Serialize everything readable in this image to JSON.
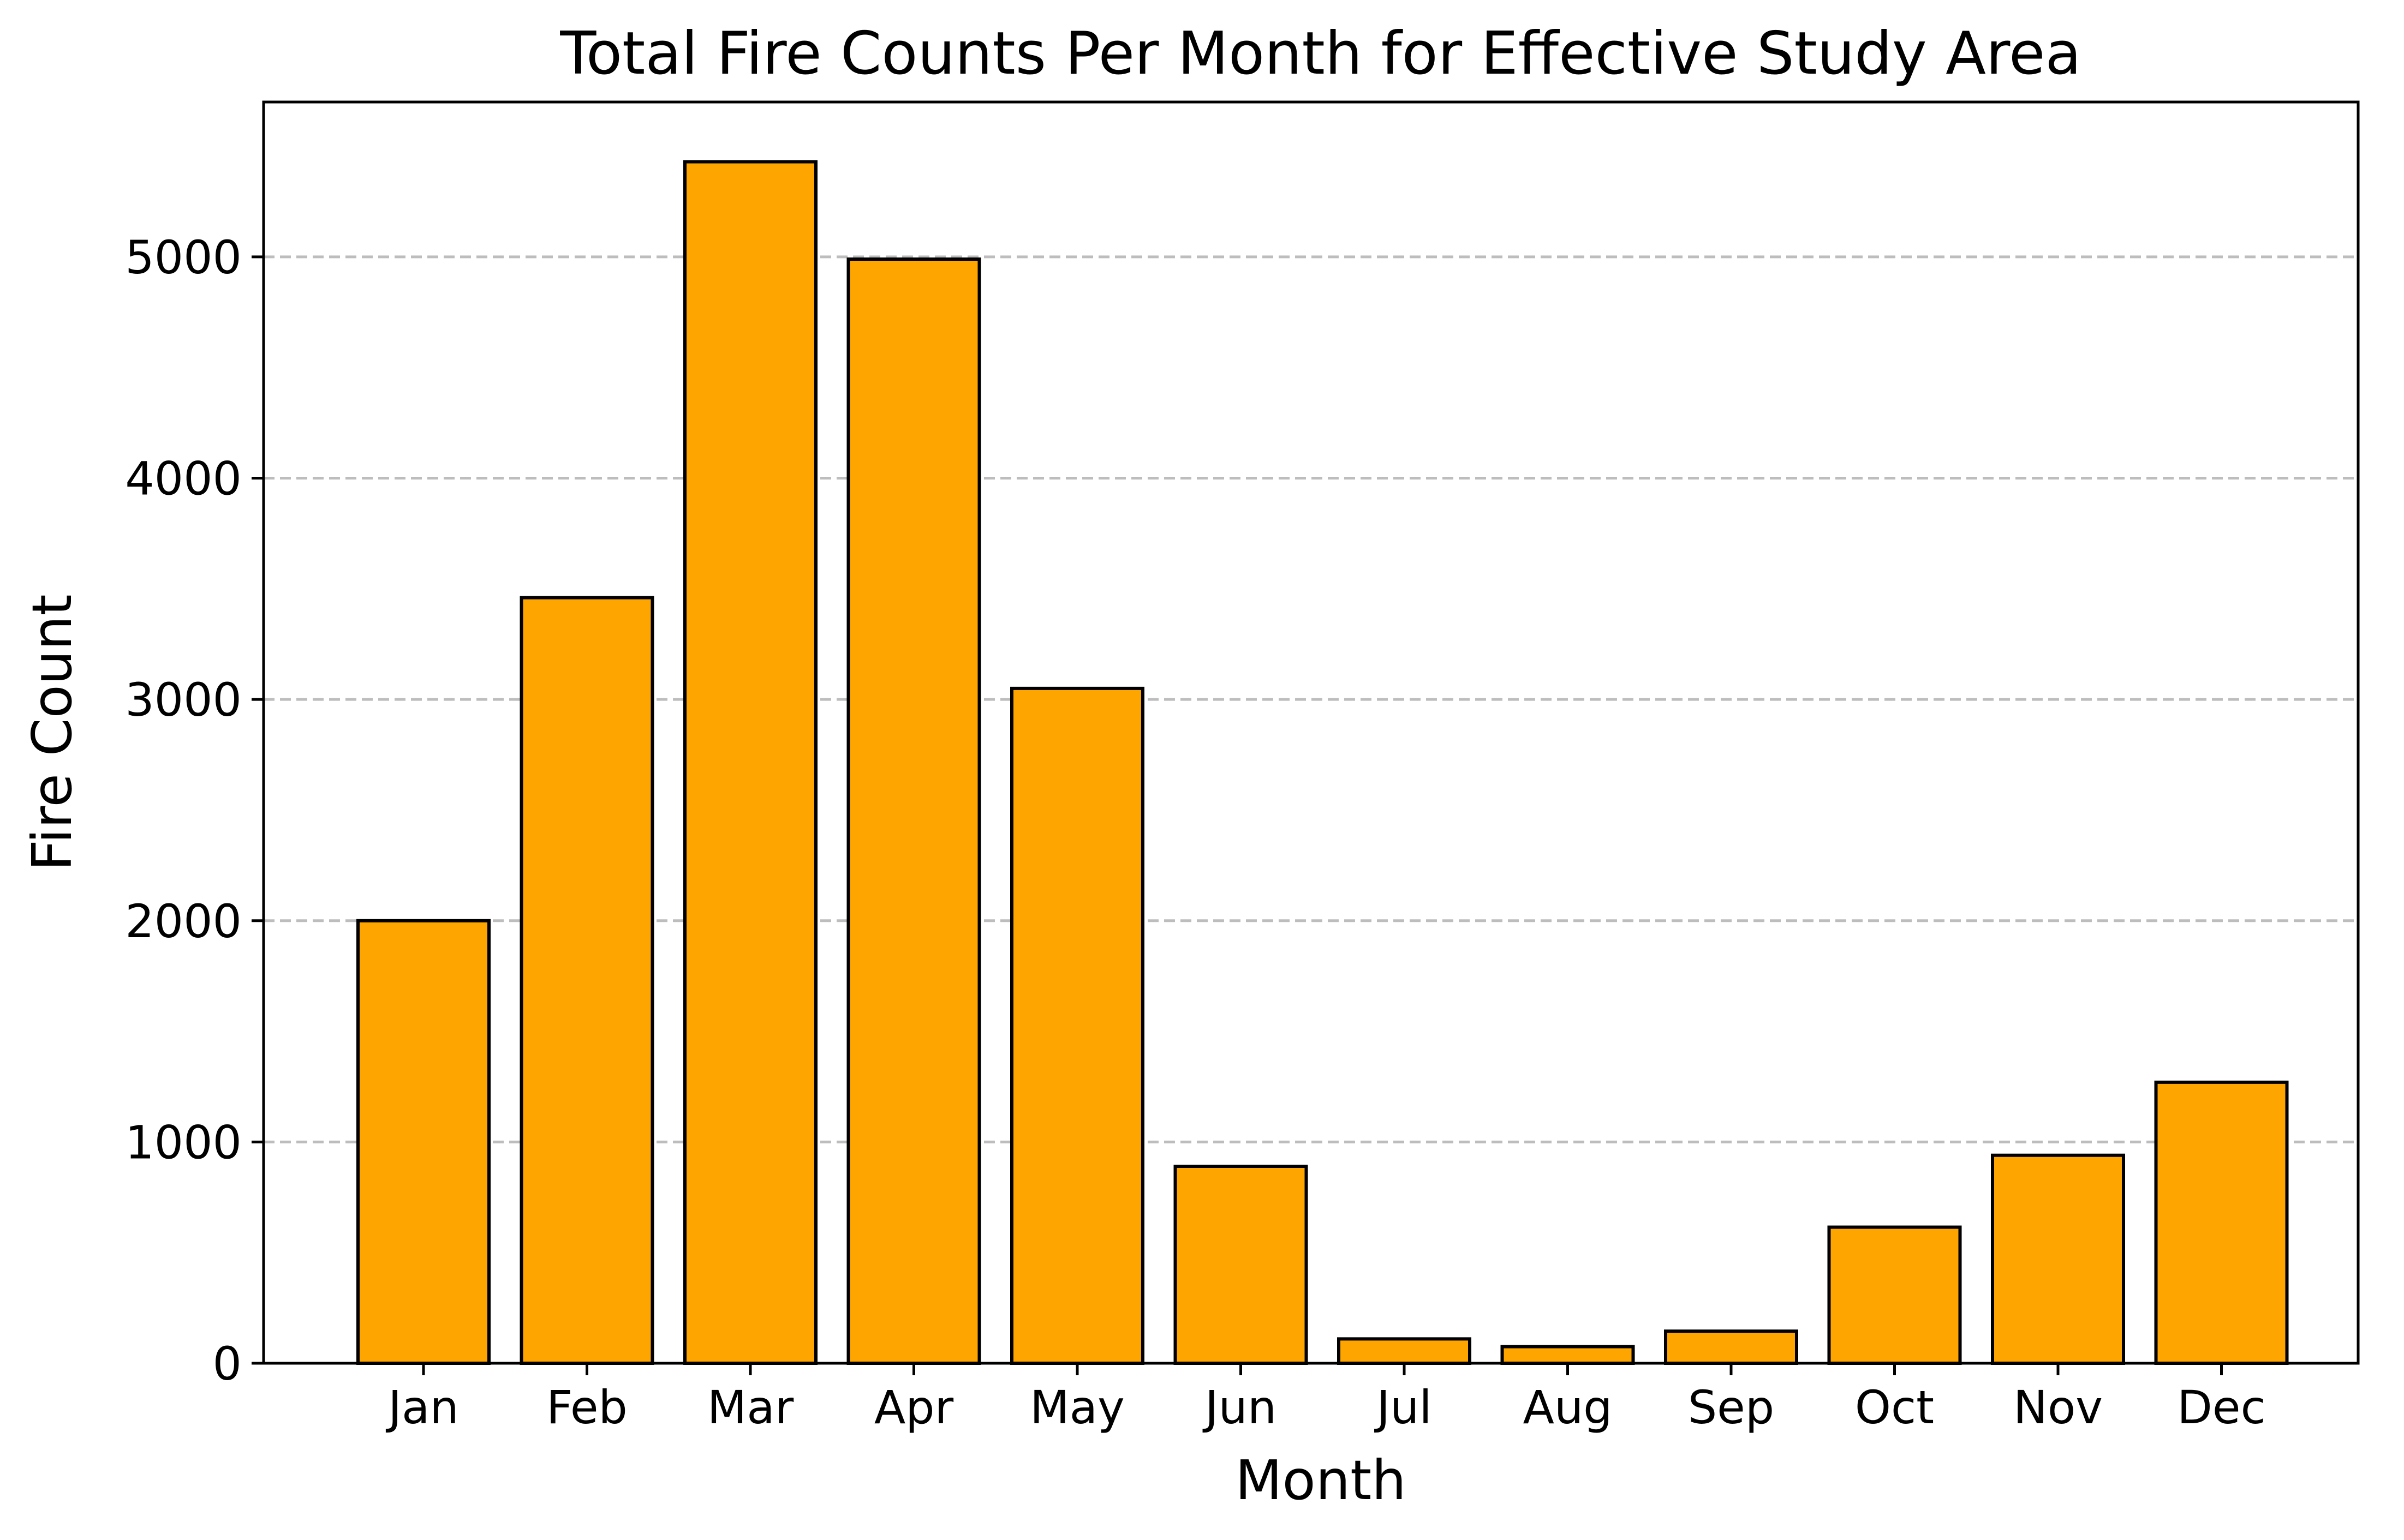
{
  "chart_data": {
    "type": "bar",
    "title": "Total Fire Counts Per Month for Effective Study Area",
    "xlabel": "Month",
    "ylabel": "Fire Count",
    "categories": [
      "Jan",
      "Feb",
      "Mar",
      "Apr",
      "May",
      "Jun",
      "Jul",
      "Aug",
      "Sep",
      "Oct",
      "Nov",
      "Dec"
    ],
    "values": [
      2000,
      3460,
      5430,
      4990,
      3050,
      890,
      110,
      75,
      145,
      615,
      940,
      1270
    ],
    "ylim": [
      0,
      5700
    ],
    "yticks": [
      0,
      1000,
      2000,
      3000,
      4000,
      5000
    ],
    "ytick_labels": [
      "0",
      "1000",
      "2000",
      "3000",
      "4000",
      "5000"
    ],
    "grid": "y-dashed",
    "bar_color": "#ffa500",
    "bar_edge_color": "#000000",
    "grid_color": "#bdbdbd"
  }
}
